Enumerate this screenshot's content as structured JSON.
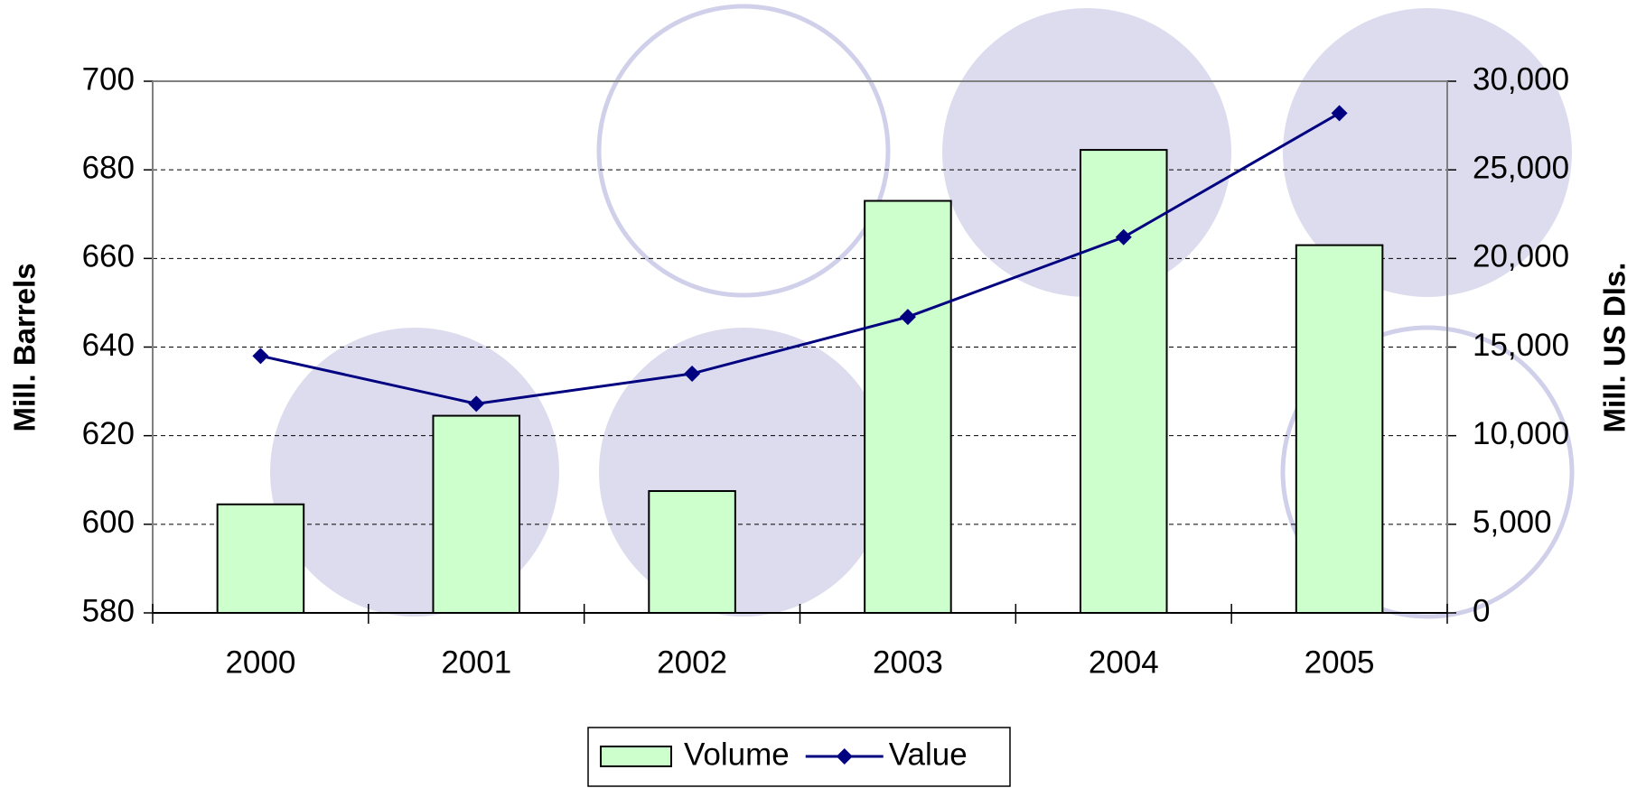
{
  "chart_data": {
    "type": "bar",
    "categories": [
      "2000",
      "2001",
      "2002",
      "2003",
      "2004",
      "2005"
    ],
    "series": [
      {
        "name": "Volume",
        "type": "bar",
        "color": "#ccffcc",
        "values": [
          604.5,
          624.5,
          607.5,
          673,
          684.5,
          663
        ]
      },
      {
        "name": "Value",
        "type": "line",
        "axis": "y2",
        "color": "#000080",
        "values": [
          14500,
          11800,
          13500,
          16700,
          21200,
          28200
        ]
      }
    ],
    "ylabel": "Mill. Barrels",
    "y2label": "Mill. US Dls.",
    "ylim": [
      580,
      700
    ],
    "yticks": [
      580,
      600,
      620,
      640,
      660,
      680,
      700
    ],
    "y2lim": [
      0,
      30000
    ],
    "y2ticks": [
      0,
      {
        "value": 5000,
        "label": "5,000"
      },
      {
        "value": 10000,
        "label": "10,000"
      },
      {
        "value": 15000,
        "label": "15,000"
      },
      {
        "value": 20000,
        "label": "20,000"
      },
      {
        "value": 25000,
        "label": "25,000"
      },
      {
        "value": 30000,
        "label": "30,000"
      }
    ],
    "grid": true,
    "legend": "bottom"
  }
}
